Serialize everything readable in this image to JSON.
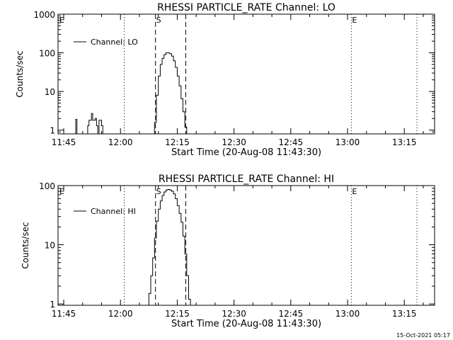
{
  "footer": {
    "timestamp": "15-Oct-2021 05:17"
  },
  "chart_data": [
    {
      "type": "line",
      "title": "RHESSI PARTICLE_RATE Channel: LO",
      "xlabel": "Start Time (20-Aug-08 11:43:30)",
      "ylabel": "Counts/sec",
      "yscale": "log",
      "xlim": [
        "11:43:30",
        "13:23:00"
      ],
      "ylim": [
        0.8,
        1000
      ],
      "x_tick_labels": [
        "11:45",
        "12:00",
        "12:15",
        "12:30",
        "12:45",
        "13:00",
        "13:15"
      ],
      "y_tick_labels": [
        "1",
        "10",
        "100",
        "1000"
      ],
      "legend": {
        "position": "top-left",
        "entries": [
          "Channel: LO"
        ]
      },
      "series": [
        {
          "name": "Channel: LO",
          "x": [
            "11:48:00",
            "11:48:10",
            "11:48:20",
            "11:48:30",
            "11:51:00",
            "11:51:20",
            "11:51:40",
            "11:52:00",
            "11:52:20",
            "11:52:40",
            "11:53:00",
            "11:53:20",
            "11:53:40",
            "11:54:00",
            "11:54:20",
            "11:54:40",
            "11:55:00",
            "11:55:20",
            "11:55:40",
            "11:56:00",
            "12:08:30",
            "12:09:00",
            "12:09:30",
            "12:10:00",
            "12:10:30",
            "12:11:00",
            "12:11:30",
            "12:12:00",
            "12:12:30",
            "12:13:00",
            "12:13:30",
            "12:14:00",
            "12:14:30",
            "12:15:00",
            "12:15:30",
            "12:16:00",
            "12:16:30",
            "12:17:00",
            "12:17:30",
            "12:18:00",
            "12:18:30",
            "12:19:00",
            "12:19:30"
          ],
          "y": [
            0.8,
            1.9,
            1.9,
            0.8,
            0.8,
            1.3,
            1.8,
            1.8,
            2.7,
            1.8,
            1.8,
            2.0,
            1.3,
            0.8,
            1.8,
            1.8,
            1.3,
            0.8,
            0.8,
            0.8,
            0.8,
            1.6,
            8,
            25,
            50,
            72,
            90,
            100,
            100,
            95,
            82,
            62,
            42,
            25,
            14,
            6.5,
            3,
            1.2,
            0.8,
            0.8,
            0.8,
            0.8,
            0.8
          ]
        }
      ],
      "markers": [
        {
          "label": "S",
          "time": "12:09:15",
          "style": "dashed"
        },
        {
          "label": "",
          "time": "12:17:15",
          "style": "dashed"
        },
        {
          "label": "",
          "time": "12:01:00",
          "style": "dotted"
        },
        {
          "label": "E",
          "time": "13:01:00",
          "style": "dotted"
        },
        {
          "label": "",
          "time": "13:18:20",
          "style": "dotted"
        }
      ],
      "corner_label": "E"
    },
    {
      "type": "line",
      "title": "RHESSI PARTICLE_RATE Channel: HI",
      "xlabel": "Start Time (20-Aug-08 11:43:30)",
      "ylabel": "Counts/sec",
      "yscale": "log",
      "xlim": [
        "11:43:30",
        "13:23:00"
      ],
      "ylim": [
        0.95,
        100
      ],
      "x_tick_labels": [
        "11:45",
        "12:00",
        "12:15",
        "12:30",
        "12:45",
        "13:00",
        "13:15"
      ],
      "y_tick_labels": [
        "1",
        "10",
        "100"
      ],
      "legend": {
        "position": "top-left",
        "entries": [
          "Channel: HI"
        ]
      },
      "series": [
        {
          "name": "Channel: HI",
          "x": [
            "12:06:30",
            "12:07:00",
            "12:07:30",
            "12:08:00",
            "12:08:30",
            "12:09:00",
            "12:09:30",
            "12:10:00",
            "12:10:30",
            "12:11:00",
            "12:11:30",
            "12:12:00",
            "12:12:30",
            "12:13:00",
            "12:13:30",
            "12:14:00",
            "12:14:30",
            "12:15:00",
            "12:15:30",
            "12:16:00",
            "12:16:30",
            "12:17:00",
            "12:17:30",
            "12:18:00",
            "12:18:30",
            "12:19:00",
            "12:19:30"
          ],
          "y": [
            0.9,
            0.9,
            1.5,
            3,
            6,
            13,
            25,
            40,
            55,
            68,
            78,
            84,
            86,
            84,
            80,
            72,
            60,
            46,
            34,
            24,
            14,
            7,
            3,
            1.2,
            0.9,
            0.9,
            0.9
          ]
        }
      ],
      "markers": [
        {
          "label": "S",
          "time": "12:09:15",
          "style": "dashed"
        },
        {
          "label": "",
          "time": "12:17:15",
          "style": "dashed"
        },
        {
          "label": "",
          "time": "12:01:00",
          "style": "dotted"
        },
        {
          "label": "E",
          "time": "13:01:00",
          "style": "dotted"
        },
        {
          "label": "",
          "time": "13:18:20",
          "style": "dotted"
        }
      ],
      "corner_label": "E"
    }
  ]
}
